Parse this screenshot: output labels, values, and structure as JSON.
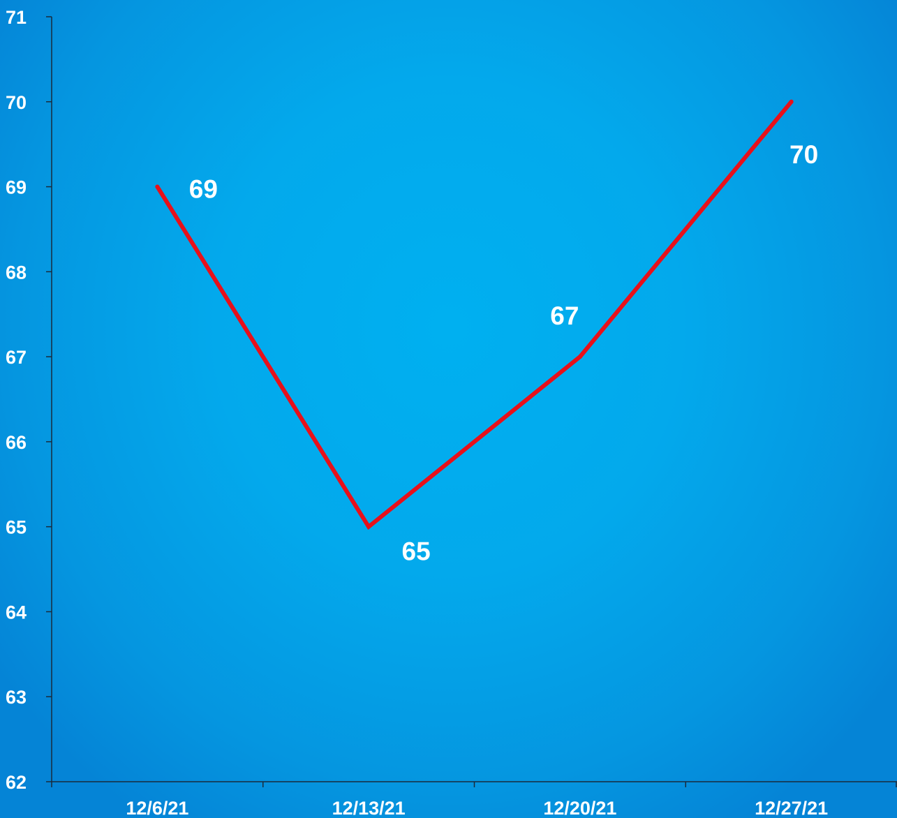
{
  "chart_data": {
    "type": "line",
    "title": "",
    "xlabel": "",
    "ylabel": "",
    "categories": [
      "12/6/21",
      "12/13/21",
      "12/20/21",
      "12/27/21"
    ],
    "series": [
      {
        "values": [
          69,
          65,
          67,
          70
        ],
        "color": "#e8101a"
      }
    ],
    "ylim": [
      62,
      71
    ],
    "yticks": [
      62,
      63,
      64,
      65,
      66,
      67,
      68,
      69,
      70,
      71
    ],
    "data_labels": [
      "69",
      "65",
      "67",
      "70"
    ],
    "grid": false,
    "legend": "none",
    "colors": {
      "background": "#00b0f0",
      "axis": "#1a2b3c",
      "text": "#ffffff",
      "line": "#e8101a"
    }
  }
}
